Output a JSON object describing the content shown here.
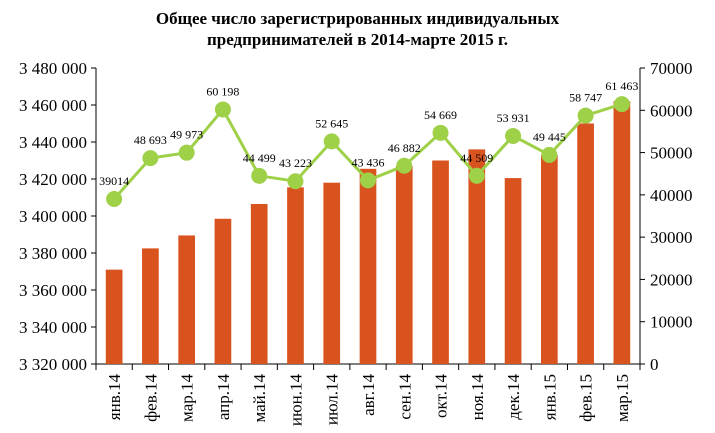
{
  "chart_data": {
    "type": "bar",
    "title_lines": [
      "Общее число зарегистрированных индивидуальных",
      "предпринимателей в 2014-марте 2015 г."
    ],
    "categories": [
      "янв.14",
      "фев.14",
      "мар.14",
      "апр.14",
      "май.14",
      "июн.14",
      "июл.14",
      "авг.14",
      "сен.14",
      "окт.14",
      "ноя.14",
      "дек.14",
      "янв.15",
      "фев.15",
      "мар.15"
    ],
    "series": [
      {
        "type": "bar",
        "axis": "left",
        "color": "#d9531e",
        "values": [
          3371000,
          3382500,
          3389500,
          3398500,
          3406500,
          3415500,
          3418000,
          3425500,
          3427000,
          3430000,
          3436000,
          3420500,
          3433000,
          3450000,
          3462000
        ]
      },
      {
        "type": "line",
        "axis": "right",
        "color": "#9ed048",
        "values": [
          39014,
          48693,
          49973,
          60198,
          44499,
          43223,
          52645,
          43436,
          46882,
          54669,
          44509,
          53931,
          49445,
          58747,
          61463
        ],
        "labels": [
          "39014",
          "48 693",
          "49 973",
          "60 198",
          "44 499",
          "43 223",
          "52 645",
          "43 436",
          "46 882",
          "54 669",
          "44 509",
          "53 931",
          "49 445",
          "58 747",
          "61 463"
        ]
      }
    ],
    "y_left": {
      "min": 3320000,
      "max": 3480000,
      "ticks": [
        3320000,
        3340000,
        3360000,
        3380000,
        3400000,
        3420000,
        3440000,
        3460000,
        3480000
      ],
      "tick_labels": [
        "3 320 000",
        "3 340 000",
        "3 360 000",
        "3 380 000",
        "3 400 000",
        "3 420 000",
        "3 440 000",
        "3 460 000",
        "3 480 000"
      ]
    },
    "y_right": {
      "min": 0,
      "max": 70000,
      "ticks": [
        0,
        10000,
        20000,
        30000,
        40000,
        50000,
        60000,
        70000
      ],
      "tick_labels": [
        "0",
        "10000",
        "20000",
        "30000",
        "40000",
        "50000",
        "60000",
        "70000"
      ]
    },
    "grid": false,
    "legend": "none"
  }
}
